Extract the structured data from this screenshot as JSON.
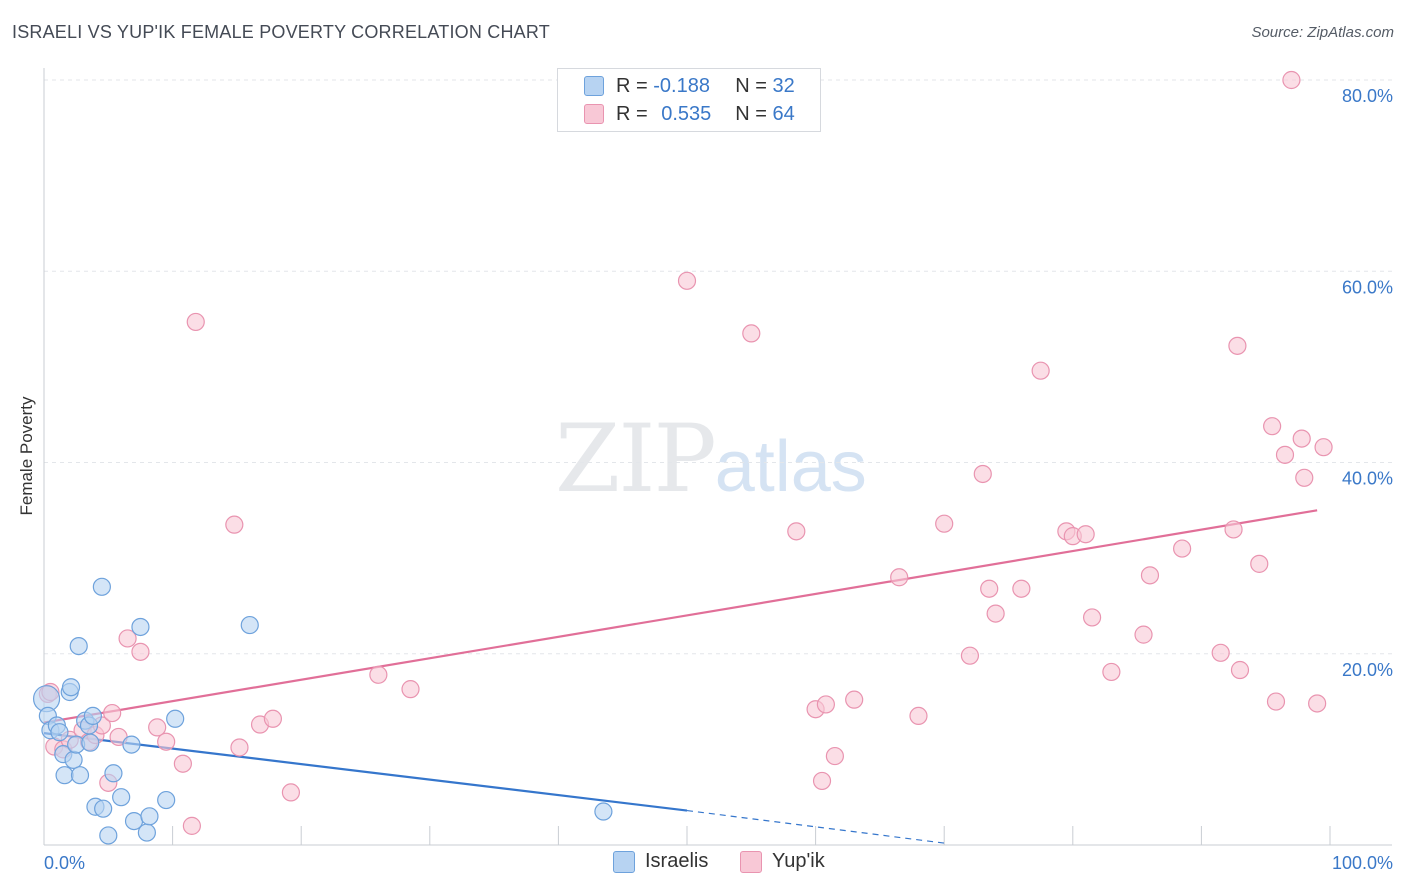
{
  "header": {
    "title": "ISRAELI VS YUP'IK FEMALE POVERTY CORRELATION CHART",
    "source": "Source: ZipAtlas.com"
  },
  "watermark": {
    "zip": "ZIP",
    "atlas": "atlas"
  },
  "legend": {
    "rows": [
      {
        "r_label": "R = ",
        "r_value": "-0.188",
        "n_label": "N = ",
        "n_value": "32"
      },
      {
        "r_label": "R = ",
        "r_value": "0.535",
        "n_label": "N = ",
        "n_value": "64"
      }
    ],
    "bottom": [
      "Israelis",
      "Yup'ik"
    ]
  },
  "colors": {
    "blue_fill": "#b7d3f2",
    "blue_stroke": "#6ea2dc",
    "blue_line": "#3576cc",
    "pink_fill": "#f8c8d6",
    "pink_stroke": "#e994b0",
    "pink_line": "#e16f98",
    "tick_label": "#3a78c8"
  },
  "chart_data": {
    "type": "scatter",
    "title": "ISRAELI VS YUP'IK FEMALE POVERTY CORRELATION CHART",
    "xlabel": "",
    "ylabel": "Female Poverty",
    "xlim": [
      0,
      100
    ],
    "ylim": [
      0,
      80
    ],
    "x_tick_labels": [
      "0.0%",
      "100.0%"
    ],
    "y_ticks": [
      20,
      40,
      60,
      80
    ],
    "y_tick_labels": [
      "20.0%",
      "40.0%",
      "60.0%",
      "80.0%"
    ],
    "grid": true,
    "legend_position": "top-center",
    "series": [
      {
        "name": "Israelis",
        "r": -0.188,
        "n": 32,
        "trend": {
          "x0": 0,
          "y0": 11.7,
          "x1": 50,
          "y1": 3.6,
          "dashed_to_x": 70,
          "dashed_to_y": 0.2
        },
        "points": [
          [
            0.2,
            15.3
          ],
          [
            0.3,
            13.5
          ],
          [
            0.5,
            12.0
          ],
          [
            1.0,
            12.5
          ],
          [
            1.5,
            9.5
          ],
          [
            1.6,
            7.3
          ],
          [
            2.0,
            16.0
          ],
          [
            2.1,
            16.5
          ],
          [
            2.3,
            8.9
          ],
          [
            2.5,
            10.5
          ],
          [
            2.7,
            20.8
          ],
          [
            2.8,
            7.3
          ],
          [
            3.2,
            13.0
          ],
          [
            3.5,
            12.5
          ],
          [
            3.6,
            10.7
          ],
          [
            3.8,
            13.5
          ],
          [
            4.0,
            4.0
          ],
          [
            4.5,
            27.0
          ],
          [
            4.6,
            3.8
          ],
          [
            5.0,
            1.0
          ],
          [
            5.4,
            7.5
          ],
          [
            6.0,
            5.0
          ],
          [
            6.8,
            10.5
          ],
          [
            7.0,
            2.5
          ],
          [
            7.5,
            22.8
          ],
          [
            8.0,
            1.3
          ],
          [
            8.2,
            3.0
          ],
          [
            9.5,
            4.7
          ],
          [
            10.2,
            13.2
          ],
          [
            16.0,
            23.0
          ],
          [
            43.5,
            3.5
          ],
          [
            1.2,
            11.8
          ]
        ]
      },
      {
        "name": "Yup'ik",
        "r": 0.535,
        "n": 64,
        "trend": {
          "x0": 0,
          "y0": 12.8,
          "x1": 99,
          "y1": 35.0
        },
        "points": [
          [
            0.3,
            15.8
          ],
          [
            0.8,
            10.3
          ],
          [
            1.5,
            10.0
          ],
          [
            2.0,
            11.0
          ],
          [
            3.0,
            12.0
          ],
          [
            3.5,
            10.8
          ],
          [
            4.0,
            11.5
          ],
          [
            4.5,
            12.5
          ],
          [
            5.0,
            6.5
          ],
          [
            5.3,
            13.8
          ],
          [
            5.8,
            11.3
          ],
          [
            6.5,
            21.6
          ],
          [
            7.5,
            20.2
          ],
          [
            8.8,
            12.3
          ],
          [
            9.5,
            10.8
          ],
          [
            10.8,
            8.5
          ],
          [
            11.5,
            2.0
          ],
          [
            11.8,
            54.7
          ],
          [
            14.8,
            33.5
          ],
          [
            15.2,
            10.2
          ],
          [
            16.8,
            12.6
          ],
          [
            17.8,
            13.2
          ],
          [
            19.2,
            5.5
          ],
          [
            26.0,
            17.8
          ],
          [
            28.5,
            16.3
          ],
          [
            50.0,
            59.0
          ],
          [
            55.0,
            53.5
          ],
          [
            58.5,
            32.8
          ],
          [
            60.0,
            14.2
          ],
          [
            60.5,
            6.7
          ],
          [
            60.8,
            14.7
          ],
          [
            61.5,
            9.3
          ],
          [
            63.0,
            15.2
          ],
          [
            66.5,
            28.0
          ],
          [
            68.0,
            13.5
          ],
          [
            70.0,
            33.6
          ],
          [
            72.0,
            19.8
          ],
          [
            73.0,
            38.8
          ],
          [
            73.5,
            26.8
          ],
          [
            74.0,
            24.2
          ],
          [
            76.0,
            26.8
          ],
          [
            77.5,
            49.6
          ],
          [
            79.5,
            32.8
          ],
          [
            80.0,
            32.3
          ],
          [
            81.0,
            32.5
          ],
          [
            81.5,
            23.8
          ],
          [
            83.0,
            18.1
          ],
          [
            85.5,
            22.0
          ],
          [
            86.0,
            28.2
          ],
          [
            88.5,
            31.0
          ],
          [
            91.5,
            20.1
          ],
          [
            92.5,
            33.0
          ],
          [
            92.8,
            52.2
          ],
          [
            93.0,
            18.3
          ],
          [
            94.5,
            29.4
          ],
          [
            95.5,
            43.8
          ],
          [
            95.8,
            15.0
          ],
          [
            96.5,
            40.8
          ],
          [
            97.0,
            80.0
          ],
          [
            97.8,
            42.5
          ],
          [
            98.0,
            38.4
          ],
          [
            99.0,
            14.8
          ],
          [
            99.5,
            41.6
          ],
          [
            0.5,
            16.0
          ]
        ]
      }
    ]
  }
}
